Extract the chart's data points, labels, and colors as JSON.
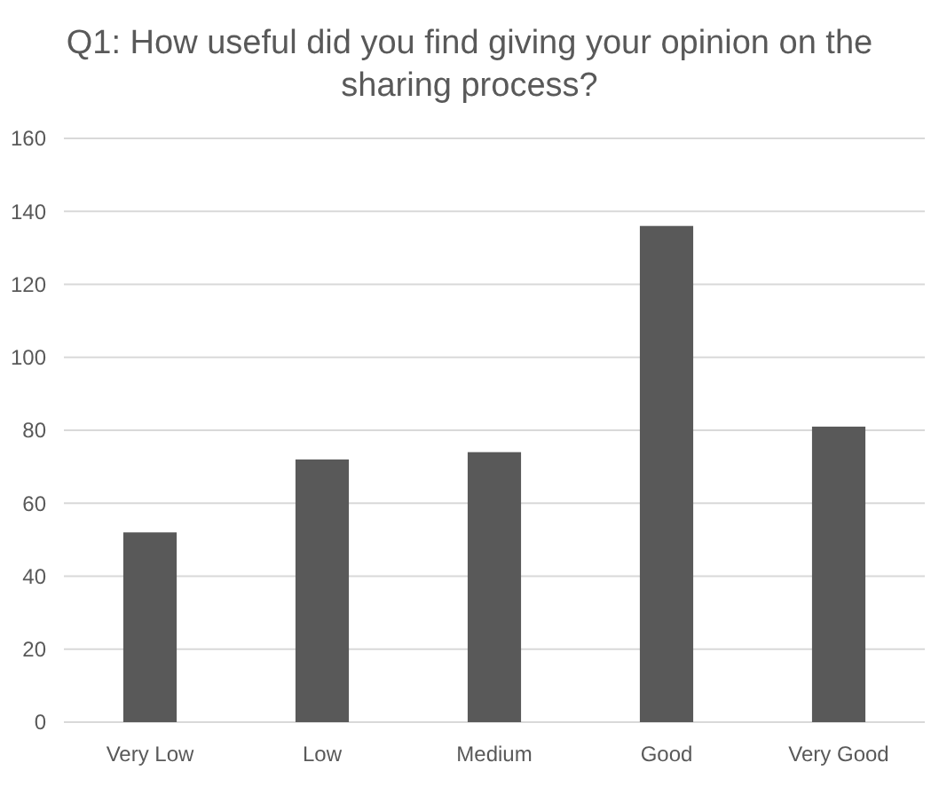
{
  "chart_data": {
    "type": "bar",
    "title": "Q1: How useful did you find giving your opinion on the sharing process?",
    "categories": [
      "Very Low",
      "Low",
      "Medium",
      "Good",
      "Very Good"
    ],
    "values": [
      52,
      72,
      74,
      136,
      81
    ],
    "color": "#595959",
    "ylim": [
      0,
      160
    ],
    "yticks": [
      0,
      20,
      40,
      60,
      80,
      100,
      120,
      140,
      160
    ],
    "grid": "y"
  }
}
